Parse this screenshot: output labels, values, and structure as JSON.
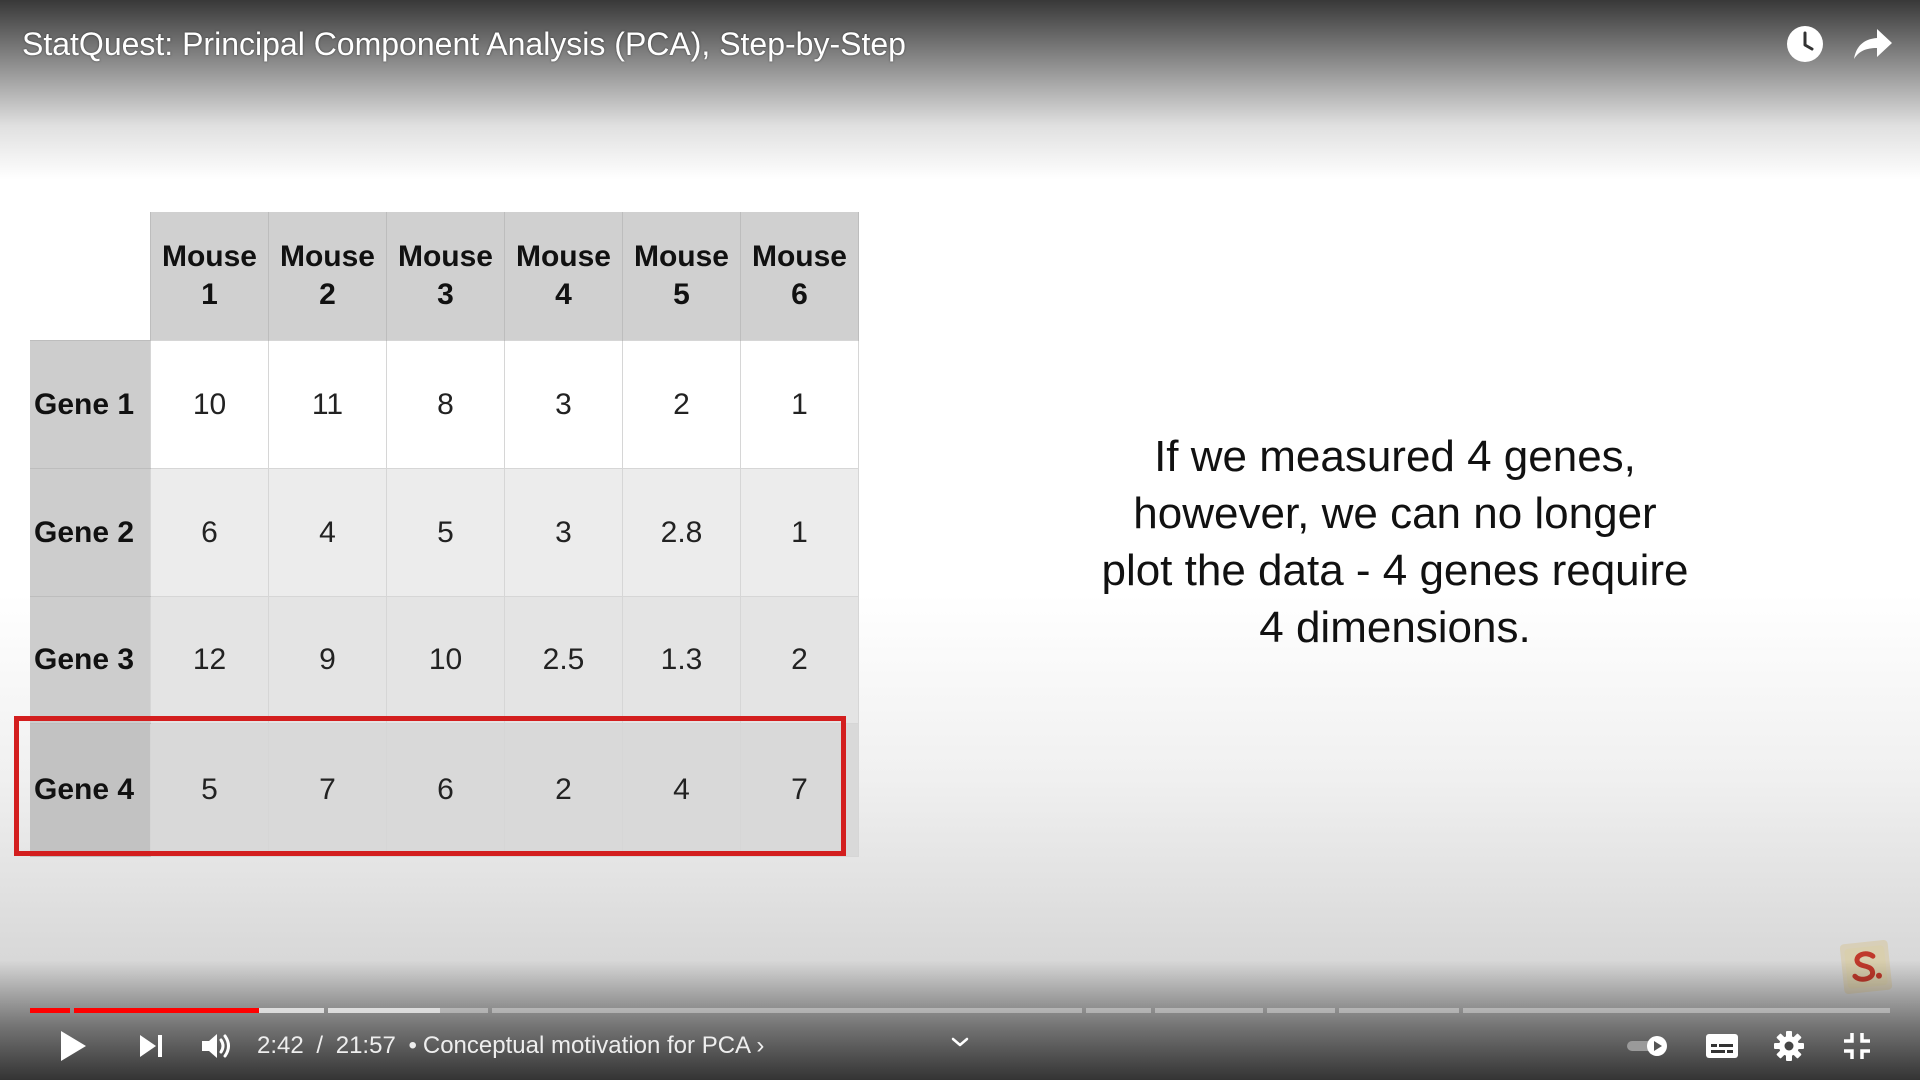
{
  "window": {
    "video_title": "StatQuest: Principal Component Analysis (PCA), Step-by-Step"
  },
  "slide": {
    "table": {
      "column_headers": [
        [
          "Mouse",
          "1"
        ],
        [
          "Mouse",
          "2"
        ],
        [
          "Mouse",
          "3"
        ],
        [
          "Mouse",
          "4"
        ],
        [
          "Mouse",
          "5"
        ],
        [
          "Mouse",
          "6"
        ]
      ],
      "rows": [
        {
          "label": "Gene 1",
          "values": [
            "10",
            "11",
            "8",
            "3",
            "2",
            "1"
          ]
        },
        {
          "label": "Gene 2",
          "values": [
            "6",
            "4",
            "5",
            "3",
            "2.8",
            "1"
          ]
        },
        {
          "label": "Gene 3",
          "values": [
            "12",
            "9",
            "10",
            "2.5",
            "1.3",
            "2"
          ]
        },
        {
          "label": "Gene 4",
          "values": [
            "5",
            "7",
            "6",
            "2",
            "4",
            "7"
          ]
        }
      ],
      "highlighted_row": "Gene 4",
      "highlight_color": "#d31e1e"
    },
    "text_lines": [
      "If we measured 4 genes,",
      "however, we can no longer",
      "plot the data - 4 genes require",
      "4 dimensions."
    ]
  },
  "player": {
    "current_time": "2:42",
    "duration": "21:57",
    "separator": "/",
    "chapter_bullet": "•",
    "chapter_title": "Conceptual motivation for PCA",
    "chapter_arrow": "›",
    "progress_fraction": 0.123,
    "progress_color": "#ff0000",
    "icons": {
      "top": [
        "clock-icon",
        "share-icon"
      ],
      "left": [
        "play-icon",
        "next-icon",
        "volume-icon"
      ],
      "right": [
        "autoplay-toggle-icon",
        "subtitles-icon",
        "settings-icon",
        "exit-fullscreen-icon"
      ],
      "center": "chevron-down-icon"
    }
  }
}
